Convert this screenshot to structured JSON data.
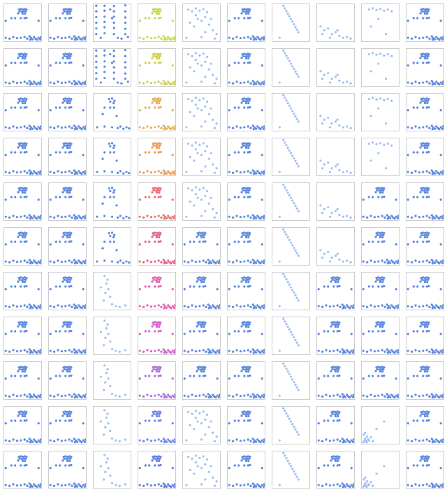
{
  "chart_data": {
    "type": "scatter",
    "tick_labels": false,
    "xlim": [
      0,
      1
    ],
    "ylim": [
      0,
      1
    ],
    "datasets": [
      {
        "x": [
          0.4,
          0.45,
          0.5,
          0.55,
          0.6,
          0.42,
          0.48,
          0.53,
          0.58,
          0.38,
          0.5,
          0.56,
          0.2,
          0.3,
          0.45,
          0.55,
          0.6,
          0.05,
          0.92,
          0.05,
          0.15,
          0.25,
          0.35,
          0.45,
          0.55,
          0.62,
          0.68,
          0.72,
          0.76,
          0.8,
          0.84,
          0.88,
          0.92,
          0.96,
          0.7,
          0.98
        ],
        "y": [
          0.85,
          0.86,
          0.85,
          0.86,
          0.85,
          0.8,
          0.79,
          0.8,
          0.8,
          0.75,
          0.74,
          0.74,
          0.62,
          0.62,
          0.62,
          0.62,
          0.63,
          0.55,
          0.55,
          0.1,
          0.08,
          0.12,
          0.09,
          0.1,
          0.12,
          0.08,
          0.14,
          0.1,
          0.06,
          0.12,
          0.08,
          0.05,
          0.1,
          0.06,
          0.05,
          0.12
        ]
      },
      {
        "x": [
          0.08,
          0.08,
          0.08,
          0.08,
          0.08,
          0.08,
          0.3,
          0.3,
          0.3,
          0.3,
          0.3,
          0.3,
          0.55,
          0.55,
          0.55,
          0.55,
          0.55,
          0.55,
          0.85,
          0.85,
          0.85,
          0.85,
          0.85,
          0.85,
          0.45,
          0.5,
          0.2,
          0.65,
          0.75,
          0.92
        ],
        "y": [
          0.2,
          0.35,
          0.5,
          0.65,
          0.8,
          0.95,
          0.22,
          0.38,
          0.52,
          0.66,
          0.82,
          0.95,
          0.2,
          0.36,
          0.5,
          0.66,
          0.8,
          0.94,
          0.2,
          0.34,
          0.5,
          0.64,
          0.8,
          0.96,
          0.85,
          0.62,
          0.1,
          0.1,
          0.08,
          0.12
        ]
      },
      {
        "x": [
          0.42,
          0.5,
          0.56,
          0.45,
          0.54,
          0.3,
          0.45,
          0.55,
          0.1,
          0.3,
          0.5,
          0.65,
          0.72,
          0.8,
          0.88,
          0.95,
          0.62,
          0.25
        ],
        "y": [
          0.85,
          0.86,
          0.8,
          0.78,
          0.74,
          0.62,
          0.62,
          0.62,
          0.1,
          0.12,
          0.1,
          0.08,
          0.12,
          0.06,
          0.1,
          0.07,
          0.4,
          0.45
        ]
      },
      {
        "x": [
          0.3,
          0.35,
          0.4,
          0.32,
          0.45,
          0.28,
          0.5,
          0.6,
          0.7,
          0.85,
          0.2,
          0.38
        ],
        "y": [
          0.9,
          0.7,
          0.55,
          0.45,
          0.35,
          0.25,
          0.15,
          0.1,
          0.08,
          0.12,
          0.6,
          0.8
        ]
      },
      {
        "x": [
          0.15,
          0.25,
          0.35,
          0.45,
          0.55,
          0.65,
          0.4,
          0.5,
          0.6,
          0.2,
          0.3,
          0.7,
          0.8,
          0.9,
          0.1,
          0.5,
          0.85,
          0.6,
          0.35,
          0.75
        ],
        "y": [
          0.85,
          0.8,
          0.88,
          0.82,
          0.86,
          0.78,
          0.6,
          0.55,
          0.65,
          0.5,
          0.4,
          0.45,
          0.3,
          0.2,
          0.1,
          0.12,
          0.08,
          0.25,
          0.7,
          0.6
        ]
      },
      {
        "x": [
          0.3,
          0.34,
          0.38,
          0.42,
          0.46,
          0.5,
          0.54,
          0.58,
          0.62,
          0.66,
          0.7,
          0.2
        ],
        "y": [
          0.95,
          0.88,
          0.81,
          0.74,
          0.67,
          0.6,
          0.53,
          0.46,
          0.39,
          0.32,
          0.25,
          0.1
        ]
      },
      {
        "x": [
          0.1,
          0.2,
          0.3,
          0.4,
          0.5,
          0.6,
          0.7,
          0.8,
          0.9,
          0.15,
          0.35,
          0.55
        ],
        "y": [
          0.4,
          0.3,
          0.35,
          0.2,
          0.25,
          0.15,
          0.1,
          0.12,
          0.08,
          0.2,
          0.1,
          0.3
        ]
      },
      {
        "x": [
          0.2,
          0.3,
          0.4,
          0.5,
          0.6,
          0.7,
          0.8,
          0.45,
          0.25,
          0.65
        ],
        "y": [
          0.85,
          0.88,
          0.84,
          0.86,
          0.82,
          0.85,
          0.8,
          0.6,
          0.4,
          0.2
        ]
      },
      {
        "x": [
          0.05,
          0.08,
          0.1,
          0.12,
          0.15,
          0.18,
          0.06,
          0.1,
          0.14,
          0.2,
          0.25,
          0.3,
          0.4,
          0.6
        ],
        "y": [
          0.05,
          0.1,
          0.15,
          0.08,
          0.2,
          0.12,
          0.25,
          0.3,
          0.05,
          0.1,
          0.18,
          0.08,
          0.4,
          0.6
        ]
      }
    ],
    "panels": [
      [
        {
          "data": 0,
          "color": "#3a6fd8"
        },
        {
          "data": 0,
          "color": "#3a6fd8"
        },
        {
          "data": 1,
          "color": "#3a6fd8"
        },
        {
          "data": 0,
          "color": "#b5d334"
        },
        {
          "data": 4,
          "color": "#8fb3ee"
        },
        {
          "data": 0,
          "color": "#3a6fd8"
        },
        {
          "data": 5,
          "color": "#8fb3ee"
        },
        {
          "data": 6,
          "color": "#8fb3ee"
        },
        {
          "data": 7,
          "color": "#8fb3ee"
        },
        {
          "data": 0,
          "color": "#3a6fd8"
        }
      ],
      [
        {
          "data": 0,
          "color": "#3a6fd8"
        },
        {
          "data": 0,
          "color": "#3a6fd8"
        },
        {
          "data": 1,
          "color": "#3a6fd8"
        },
        {
          "data": 0,
          "color": "#c8c430"
        },
        {
          "data": 4,
          "color": "#8fb3ee"
        },
        {
          "data": 0,
          "color": "#3a6fd8"
        },
        {
          "data": 5,
          "color": "#8fb3ee"
        },
        {
          "data": 6,
          "color": "#8fb3ee"
        },
        {
          "data": 7,
          "color": "#8fb3ee"
        },
        {
          "data": 0,
          "color": "#3a6fd8"
        }
      ],
      [
        {
          "data": 0,
          "color": "#3a6fd8"
        },
        {
          "data": 0,
          "color": "#3a6fd8"
        },
        {
          "data": 2,
          "color": "#3a6fd8"
        },
        {
          "data": 0,
          "color": "#e0a030"
        },
        {
          "data": 4,
          "color": "#8fb3ee"
        },
        {
          "data": 0,
          "color": "#3a6fd8"
        },
        {
          "data": 5,
          "color": "#8fb3ee"
        },
        {
          "data": 6,
          "color": "#8fb3ee"
        },
        {
          "data": 7,
          "color": "#8fb3ee"
        },
        {
          "data": 0,
          "color": "#3a6fd8"
        }
      ],
      [
        {
          "data": 0,
          "color": "#3a6fd8"
        },
        {
          "data": 0,
          "color": "#3a6fd8"
        },
        {
          "data": 2,
          "color": "#3a6fd8"
        },
        {
          "data": 0,
          "color": "#e8883a"
        },
        {
          "data": 4,
          "color": "#8fb3ee"
        },
        {
          "data": 0,
          "color": "#3a6fd8"
        },
        {
          "data": 5,
          "color": "#8fb3ee"
        },
        {
          "data": 6,
          "color": "#8fb3ee"
        },
        {
          "data": 7,
          "color": "#8fb3ee"
        },
        {
          "data": 0,
          "color": "#3a6fd8"
        }
      ],
      [
        {
          "data": 0,
          "color": "#3a6fd8"
        },
        {
          "data": 0,
          "color": "#3a6fd8"
        },
        {
          "data": 2,
          "color": "#3a6fd8"
        },
        {
          "data": 0,
          "color": "#e8505a"
        },
        {
          "data": 4,
          "color": "#8fb3ee"
        },
        {
          "data": 0,
          "color": "#3a6fd8"
        },
        {
          "data": 5,
          "color": "#8fb3ee"
        },
        {
          "data": 6,
          "color": "#8fb3ee"
        },
        {
          "data": 0,
          "color": "#3a6fd8"
        },
        {
          "data": 0,
          "color": "#3a6fd8"
        }
      ],
      [
        {
          "data": 0,
          "color": "#3a6fd8"
        },
        {
          "data": 0,
          "color": "#3a6fd8"
        },
        {
          "data": 2,
          "color": "#3a6fd8"
        },
        {
          "data": 0,
          "color": "#e04070"
        },
        {
          "data": 0,
          "color": "#3a6fd8"
        },
        {
          "data": 0,
          "color": "#3a6fd8"
        },
        {
          "data": 5,
          "color": "#8fb3ee"
        },
        {
          "data": 6,
          "color": "#8fb3ee"
        },
        {
          "data": 0,
          "color": "#3a6fd8"
        },
        {
          "data": 0,
          "color": "#3a6fd8"
        }
      ],
      [
        {
          "data": 0,
          "color": "#3a6fd8"
        },
        {
          "data": 0,
          "color": "#3a6fd8"
        },
        {
          "data": 3,
          "color": "#8fb3ee"
        },
        {
          "data": 0,
          "color": "#e040a0"
        },
        {
          "data": 0,
          "color": "#3a6fd8"
        },
        {
          "data": 0,
          "color": "#3a6fd8"
        },
        {
          "data": 5,
          "color": "#8fb3ee"
        },
        {
          "data": 0,
          "color": "#3a6fd8"
        },
        {
          "data": 0,
          "color": "#3a6fd8"
        },
        {
          "data": 0,
          "color": "#3a6fd8"
        }
      ],
      [
        {
          "data": 0,
          "color": "#3a6fd8"
        },
        {
          "data": 0,
          "color": "#3a6fd8"
        },
        {
          "data": 3,
          "color": "#8fb3ee"
        },
        {
          "data": 0,
          "color": "#d040c0"
        },
        {
          "data": 0,
          "color": "#3a6fd8"
        },
        {
          "data": 0,
          "color": "#3a6fd8"
        },
        {
          "data": 5,
          "color": "#8fb3ee"
        },
        {
          "data": 0,
          "color": "#3a6fd8"
        },
        {
          "data": 0,
          "color": "#3a6fd8"
        },
        {
          "data": 0,
          "color": "#3a6fd8"
        }
      ],
      [
        {
          "data": 0,
          "color": "#3a6fd8"
        },
        {
          "data": 0,
          "color": "#3a6fd8"
        },
        {
          "data": 3,
          "color": "#8fb3ee"
        },
        {
          "data": 0,
          "color": "#a050d0"
        },
        {
          "data": 0,
          "color": "#3a6fd8"
        },
        {
          "data": 0,
          "color": "#3a6fd8"
        },
        {
          "data": 5,
          "color": "#8fb3ee"
        },
        {
          "data": 0,
          "color": "#3a6fd8"
        },
        {
          "data": 0,
          "color": "#3a6fd8"
        },
        {
          "data": 0,
          "color": "#3a6fd8"
        }
      ],
      [
        {
          "data": 0,
          "color": "#3a6fd8"
        },
        {
          "data": 0,
          "color": "#3a6fd8"
        },
        {
          "data": 3,
          "color": "#8fb3ee"
        },
        {
          "data": 0,
          "color": "#5070e0"
        },
        {
          "data": 4,
          "color": "#8fb3ee"
        },
        {
          "data": 0,
          "color": "#3a6fd8"
        },
        {
          "data": 5,
          "color": "#8fb3ee"
        },
        {
          "data": 0,
          "color": "#3a6fd8"
        },
        {
          "data": 8,
          "color": "#8fb3ee"
        },
        {
          "data": 0,
          "color": "#3a6fd8"
        }
      ],
      [
        {
          "data": 0,
          "color": "#3a6fd8"
        },
        {
          "data": 0,
          "color": "#3a6fd8"
        },
        {
          "data": 3,
          "color": "#8fb3ee"
        },
        {
          "data": 0,
          "color": "#4060e0"
        },
        {
          "data": 4,
          "color": "#8fb3ee"
        },
        {
          "data": 0,
          "color": "#3a6fd8"
        },
        {
          "data": 5,
          "color": "#8fb3ee"
        },
        {
          "data": 0,
          "color": "#3a6fd8"
        },
        {
          "data": 8,
          "color": "#8fb3ee"
        },
        {
          "data": 0,
          "color": "#3a6fd8"
        }
      ]
    ]
  }
}
